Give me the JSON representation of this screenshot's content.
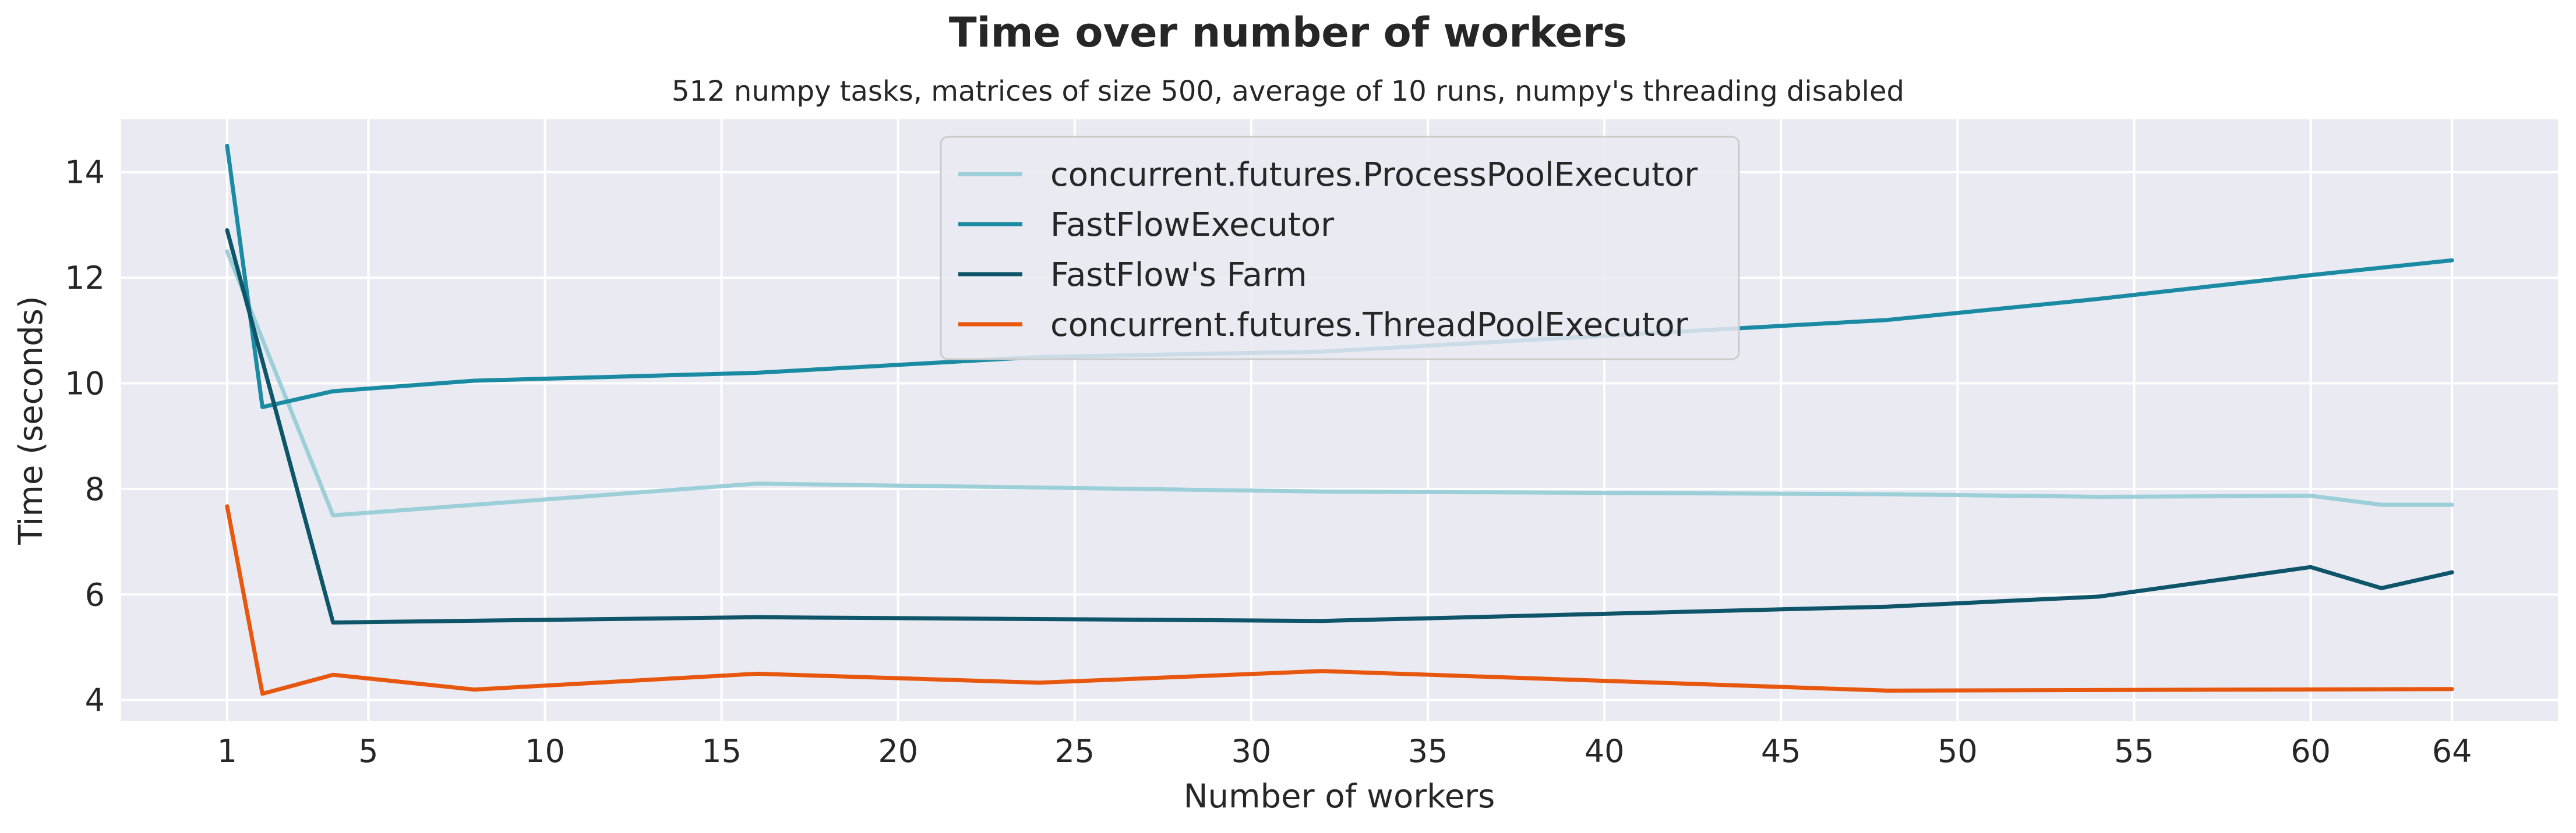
{
  "chart_data": {
    "type": "line",
    "title": "Time over number of workers",
    "subtitle": "512 numpy tasks, matrices of size 500, average of 10 runs, numpy's threading disabled",
    "xlabel": "Number of workers",
    "ylabel": "Time (seconds)",
    "xlim": [
      -2,
      67
    ],
    "ylim": [
      3.6,
      15.0
    ],
    "xticks": [
      1,
      5,
      10,
      15,
      20,
      25,
      30,
      35,
      40,
      45,
      50,
      55,
      60,
      64
    ],
    "yticks": [
      4,
      6,
      8,
      10,
      12,
      14
    ],
    "grid": true,
    "legend_position": "top-center",
    "background": "#eaeaf2",
    "series": [
      {
        "name": "concurrent.futures.ProcessPoolExecutor",
        "color": "#9dcfd9",
        "points": [
          [
            1,
            12.5
          ],
          [
            4,
            7.5
          ],
          [
            16,
            8.1
          ],
          [
            32,
            7.95
          ],
          [
            48,
            7.9
          ],
          [
            54,
            7.85
          ],
          [
            60,
            7.87
          ],
          [
            62,
            7.7
          ],
          [
            64,
            7.7
          ]
        ]
      },
      {
        "name": "FastFlowExecutor",
        "color": "#1b8ba3",
        "points": [
          [
            1,
            14.5
          ],
          [
            2,
            9.55
          ],
          [
            4,
            9.85
          ],
          [
            8,
            10.05
          ],
          [
            16,
            10.2
          ],
          [
            24,
            10.5
          ],
          [
            32,
            10.6
          ],
          [
            40,
            10.9
          ],
          [
            48,
            11.2
          ],
          [
            54,
            11.6
          ],
          [
            60,
            12.05
          ],
          [
            64,
            12.33
          ]
        ]
      },
      {
        "name": "FastFlow's Farm",
        "color": "#0f5569",
        "points": [
          [
            1,
            12.9
          ],
          [
            4,
            5.47
          ],
          [
            16,
            5.57
          ],
          [
            32,
            5.5
          ],
          [
            48,
            5.77
          ],
          [
            54,
            5.96
          ],
          [
            60,
            6.52
          ],
          [
            62,
            6.12
          ],
          [
            64,
            6.42
          ]
        ]
      },
      {
        "name": "concurrent.futures.ThreadPoolExecutor",
        "color": "#e8570e",
        "points": [
          [
            1,
            7.67
          ],
          [
            2,
            4.12
          ],
          [
            4,
            4.48
          ],
          [
            8,
            4.2
          ],
          [
            16,
            4.5
          ],
          [
            24,
            4.33
          ],
          [
            32,
            4.55
          ],
          [
            48,
            4.18
          ],
          [
            64,
            4.21
          ]
        ]
      }
    ]
  }
}
